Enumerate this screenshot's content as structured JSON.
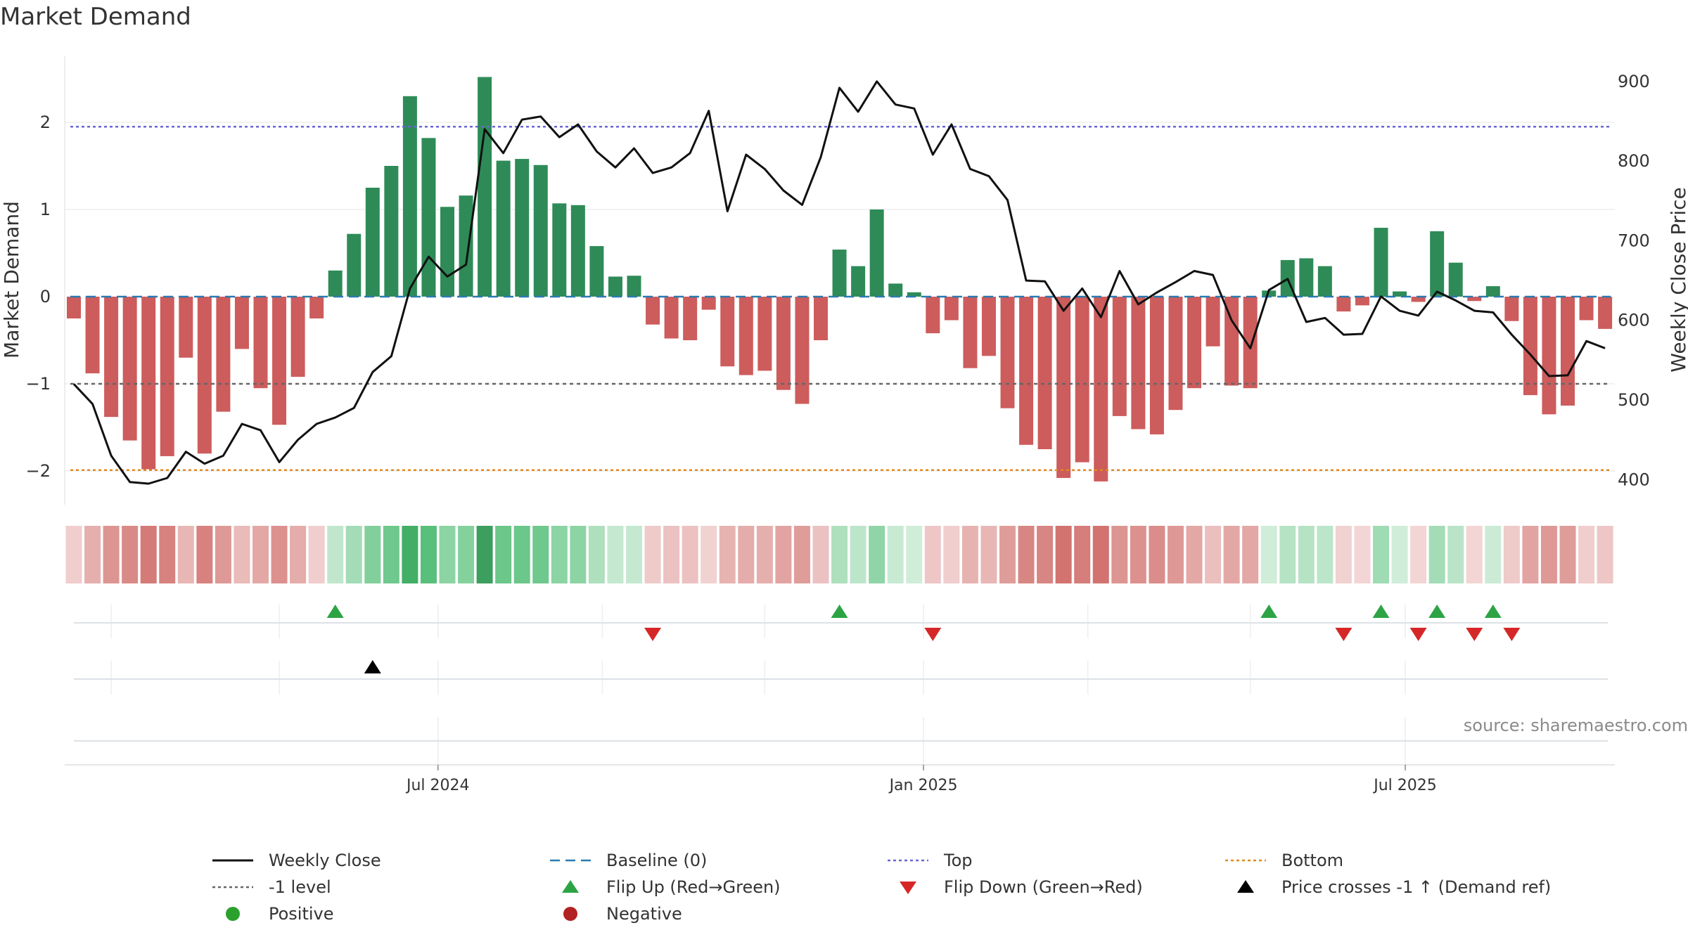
{
  "title": "Market Demand",
  "source": "source: sharemaestro.com",
  "chart_data": {
    "type": "bar",
    "title": "Market Demand",
    "ylabel_left": "Market Demand",
    "ylabel_right": "Weekly Close Price",
    "ylim_left": [
      -2.4,
      2.8
    ],
    "yticks_left": [
      -2,
      -1,
      0,
      1,
      2
    ],
    "ylim_right": [
      380,
      920
    ],
    "yticks_right": [
      400,
      500,
      600,
      700,
      800,
      900
    ],
    "x_ticks": [
      "Jul 2024",
      "Jan 2025",
      "Jul 2025"
    ],
    "x_tick_index": [
      19.5,
      45.5,
      71.3
    ],
    "weeks": 83,
    "demand": [
      -0.25,
      -0.88,
      -1.38,
      -1.65,
      -1.98,
      -1.83,
      -0.7,
      -1.8,
      -1.32,
      -0.6,
      -1.05,
      -1.47,
      -0.92,
      -0.25,
      0.3,
      0.72,
      1.25,
      1.5,
      2.3,
      1.82,
      1.03,
      1.16,
      2.52,
      1.56,
      1.58,
      1.51,
      1.07,
      1.05,
      0.58,
      0.23,
      0.24,
      -0.32,
      -0.48,
      -0.5,
      -0.15,
      -0.8,
      -0.9,
      -0.85,
      -1.07,
      -1.23,
      -0.5,
      0.54,
      0.35,
      1.0,
      0.15,
      0.05,
      -0.42,
      -0.27,
      -0.82,
      -0.68,
      -1.28,
      -1.7,
      -1.75,
      -2.08,
      -1.9,
      -2.12,
      -1.37,
      -1.52,
      -1.58,
      -1.3,
      -1.05,
      -0.57,
      -1.02,
      -1.05,
      0.07,
      0.42,
      0.44,
      0.35,
      -0.17,
      -0.1,
      0.79,
      0.06,
      -0.06,
      0.75,
      0.39,
      -0.05,
      0.12,
      -0.28,
      -1.13,
      -1.35,
      -1.25,
      -0.27,
      -0.37
    ],
    "weekly_close": [
      520,
      495,
      430,
      397,
      395,
      402,
      435,
      420,
      430,
      470,
      462,
      422,
      450,
      470,
      478,
      490,
      535,
      555,
      640,
      680,
      655,
      670,
      840,
      810,
      852,
      856,
      830,
      846,
      812,
      792,
      816,
      785,
      792,
      810,
      863,
      737,
      808,
      790,
      763,
      745,
      805,
      892,
      862,
      900,
      871,
      866,
      808,
      846,
      790,
      781,
      751,
      650,
      649,
      612,
      640,
      604,
      662,
      620,
      635,
      648,
      662,
      657,
      600,
      565,
      638,
      652,
      598,
      603,
      582,
      583,
      630,
      612,
      606,
      636,
      625,
      612,
      610,
      582,
      557,
      530,
      531,
      574,
      565
    ],
    "series": [
      {
        "name": "Weekly Close",
        "style": "solid",
        "color": "#111111"
      },
      {
        "name": "Baseline (0)",
        "value": 0,
        "color": "#2a7ab0"
      },
      {
        "name": "Top",
        "value": 1.95,
        "color": "#6b66d4"
      },
      {
        "name": "Bottom",
        "value": -1.99,
        "color": "#e08a1e"
      },
      {
        "name": "-1 level",
        "value": -1,
        "color": "#666666"
      }
    ],
    "flip_up_weeks": [
      14,
      41,
      64,
      70,
      73,
      76
    ],
    "flip_down_weeks": [
      31,
      46,
      68,
      72,
      75,
      77
    ],
    "price_cross_weeks": [
      16
    ],
    "colors": {
      "positive": "#2e8b57",
      "negative": "#cd5c5c",
      "flip_up": "#2ca444",
      "flip_down": "#d62728",
      "cross": "#000000",
      "grid": "#e6e6e6"
    }
  },
  "legend": [
    {
      "label": "Weekly Close",
      "kind": "line",
      "color": "#111111"
    },
    {
      "label": "Baseline (0)",
      "kind": "dashed",
      "color": "#2a7ab0"
    },
    {
      "label": "Top",
      "kind": "dotted",
      "color": "#6b66d4"
    },
    {
      "label": "Bottom",
      "kind": "dotted",
      "color": "#e08a1e"
    },
    {
      "label": "-1 level",
      "kind": "dotted",
      "color": "#666666"
    },
    {
      "label": "Flip Up (Red→Green)",
      "kind": "tri-up",
      "color": "#2ca444"
    },
    {
      "label": "Flip Down (Green→Red)",
      "kind": "tri-down",
      "color": "#d62728"
    },
    {
      "label": "Price crosses -1 ↑ (Demand ref)",
      "kind": "tri-up",
      "color": "#000000"
    },
    {
      "label": "Positive",
      "kind": "dot",
      "color": "#2ca02c"
    },
    {
      "label": "Negative",
      "kind": "dot",
      "color": "#b22222"
    }
  ]
}
